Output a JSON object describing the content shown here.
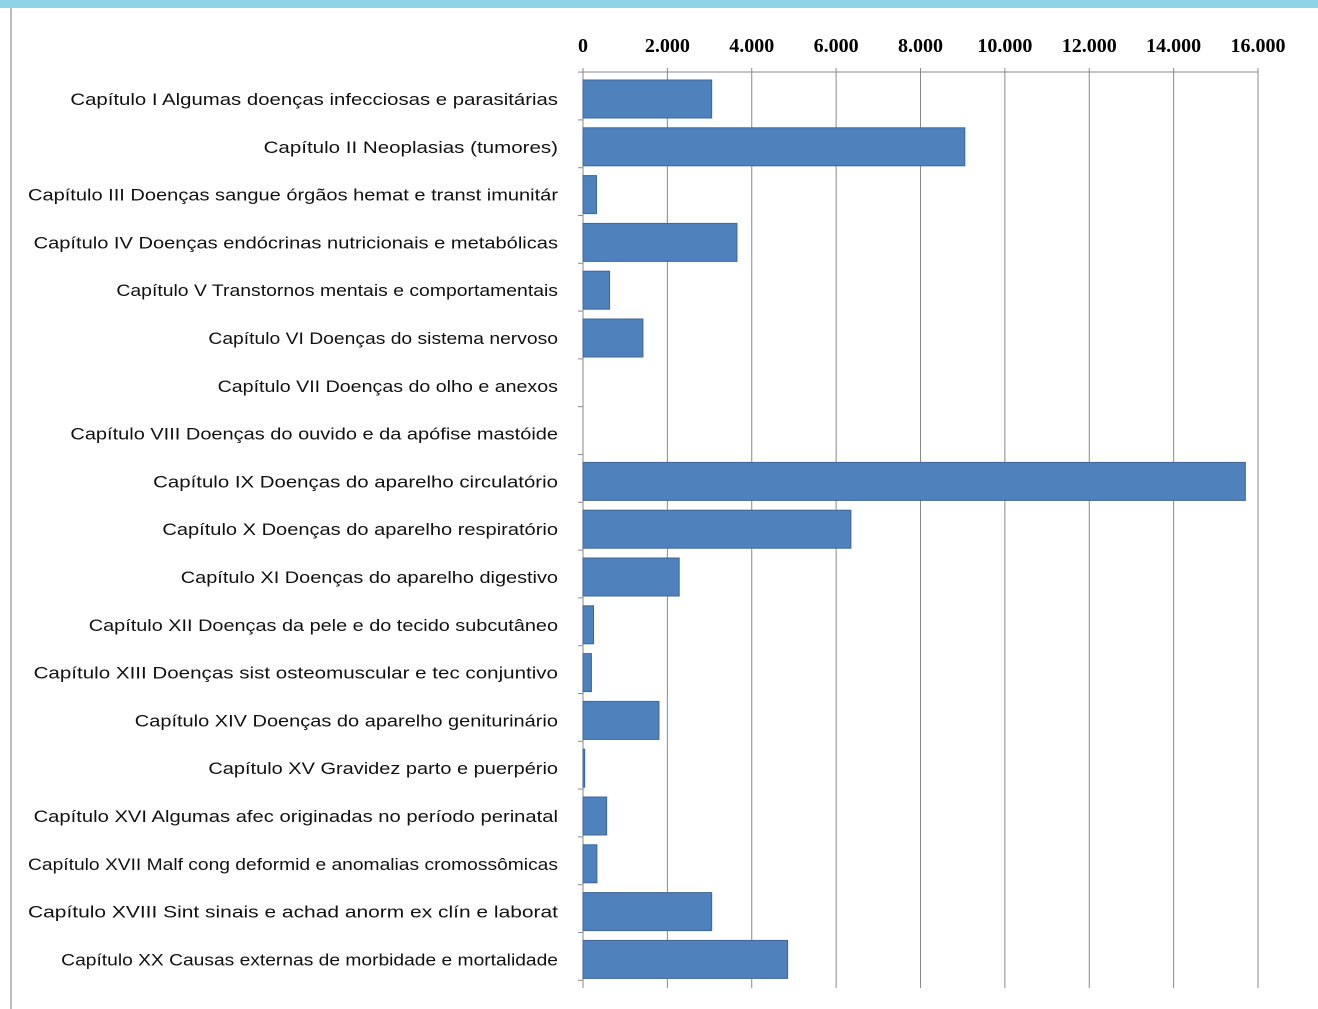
{
  "chart_data": {
    "type": "bar",
    "orientation": "horizontal",
    "title": "",
    "xlabel": "",
    "ylabel": "",
    "xlim": [
      0,
      16000
    ],
    "tick_values": [
      0,
      2000,
      4000,
      6000,
      8000,
      10000,
      12000,
      14000,
      16000
    ],
    "tick_labels": [
      "0",
      "2.000",
      "4.000",
      "6.000",
      "8.000",
      "10.000",
      "12.000",
      "14.000",
      "16.000"
    ],
    "axis_position": "top",
    "grid": true,
    "bar_color": "#4f81bd",
    "categories": [
      "Capítulo I Algumas doenças infecciosas e parasitárias",
      "Capítulo II Neoplasias (tumores)",
      "Capítulo III Doenças sangue órgãos hemat e transt imunitár",
      "Capítulo IV Doenças endócrinas nutricionais e metabólicas",
      "Capítulo V Transtornos mentais e comportamentais",
      "Capítulo VI Doenças do sistema nervoso",
      "Capítulo VII Doenças do olho e anexos",
      "Capítulo VIII Doenças do ouvido e da apófise mastóide",
      "Capítulo IX Doenças do aparelho circulatório",
      "Capítulo X Doenças do aparelho respiratório",
      "Capítulo XI Doenças do aparelho digestivo",
      "Capítulo XII Doenças da pele e do tecido subcutâneo",
      "Capítulo XIII Doenças sist osteomuscular e tec conjuntivo",
      "Capítulo XIV Doenças do aparelho geniturinário",
      "Capítulo XV Gravidez parto e puerpério",
      "Capítulo XVI Algumas afec originadas no período perinatal",
      "Capítulo XVII Malf cong deformid e anomalias cromossômicas",
      "Capítulo XVIII Sint sinais e achad anorm ex clín e laborat",
      "Capítulo XX Causas externas de morbidade e mortalidade"
    ],
    "values": [
      3050,
      9050,
      320,
      3650,
      630,
      1420,
      0,
      0,
      15700,
      6350,
      2280,
      250,
      200,
      1800,
      40,
      560,
      330,
      3050,
      4850
    ]
  }
}
